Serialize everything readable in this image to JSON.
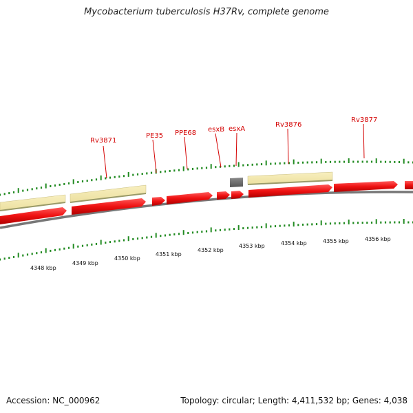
{
  "title": "Mycobacterium tuberculosis H37Rv, complete genome",
  "footer": {
    "accession": "Accession: NC_000962",
    "summary": "Topology: circular; Length: 4,411,532 bp; Genes: 4,038"
  },
  "map": {
    "kbp_labels": [
      "4348 kbp",
      "4349 kbp",
      "4350 kbp",
      "4351 kbp",
      "4352 kbp",
      "4353 kbp",
      "4354 kbp",
      "4355 kbp",
      "4356 kbp"
    ],
    "gene_labels": [
      "Rv3871",
      "PE35",
      "PPE68",
      "esxB",
      "esxA",
      "Rv3876",
      "Rv3877"
    ],
    "colors": {
      "backbone": "#808080",
      "cds": "#ee1111",
      "gene_region": "#f1e6a6",
      "gene_region_edge": "#9a9a68",
      "rna": "#666666",
      "tick": "#228b22",
      "label": "#d40000"
    }
  }
}
